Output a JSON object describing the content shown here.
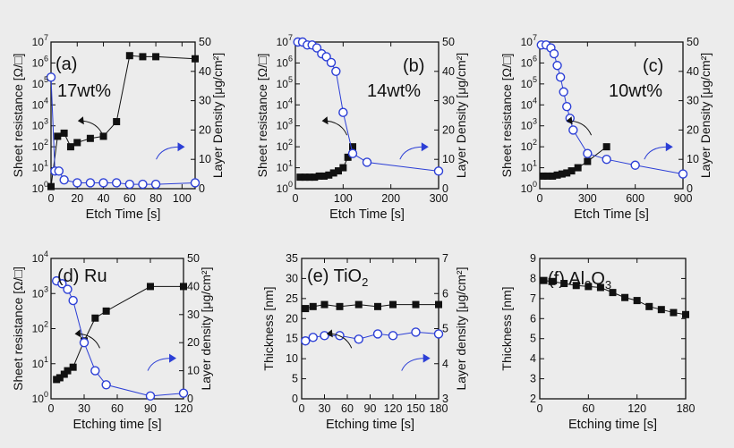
{
  "figure": {
    "background": "#ececec",
    "black": "#111111",
    "blue": "#2c3fd6",
    "white": "#ffffff"
  },
  "chart_data": [
    {
      "id": "a",
      "type": "line",
      "panel_label": "(a)",
      "annotation": "17wt%",
      "xlabel": "Etch Time [s]",
      "ylabel_left": "Sheet resistance [Ω/□]",
      "ylabel_right": "Layer Density [μg/cm²]",
      "xlim": [
        0,
        110
      ],
      "xticks": [
        0,
        20,
        40,
        60,
        80,
        100
      ],
      "y_left": {
        "scale": "log",
        "lim": [
          0,
          7
        ],
        "ticks": [
          0,
          1,
          2,
          3,
          4,
          5,
          6,
          7
        ],
        "tick_labels": [
          "10^0",
          "10^1",
          "10^2",
          "10^3",
          "10^4",
          "10^5",
          "10^6",
          "10^7"
        ]
      },
      "y_right": {
        "lim": [
          0,
          50
        ],
        "ticks": [
          0,
          10,
          20,
          30,
          40,
          50
        ]
      },
      "series": [
        {
          "name": "Sheet resistance",
          "axis": "left",
          "marker": "square",
          "color": "#111111",
          "x": [
            0,
            5,
            10,
            15,
            20,
            30,
            40,
            50,
            60,
            70,
            80,
            110
          ],
          "y": [
            0.1,
            2.5,
            2.65,
            2.0,
            2.2,
            2.4,
            2.5,
            3.2,
            6.35,
            6.3,
            6.3,
            6.2
          ]
        },
        {
          "name": "Layer density",
          "axis": "right",
          "marker": "circle-open",
          "color": "#2c3fd6",
          "x": [
            0,
            3,
            6,
            10,
            20,
            30,
            40,
            50,
            60,
            70,
            80,
            110
          ],
          "y": [
            38,
            6,
            6,
            3,
            2,
            2,
            2,
            2,
            1.5,
            1.5,
            1.5,
            2
          ]
        }
      ],
      "arrows": [
        {
          "side": "left"
        },
        {
          "side": "right"
        }
      ]
    },
    {
      "id": "b",
      "type": "line",
      "panel_label": "(b)",
      "annotation": "14wt%",
      "xlabel": "Etch Time [s]",
      "ylabel_left": "Sheet resistance [Ω/□]",
      "ylabel_right": "Layer Density [μg/cm²]",
      "xlim": [
        0,
        300
      ],
      "xticks": [
        0,
        100,
        200,
        300
      ],
      "y_left": {
        "scale": "log",
        "lim": [
          0,
          7
        ],
        "ticks": [
          0,
          1,
          2,
          3,
          4,
          5,
          6,
          7
        ],
        "tick_labels": [
          "10^0",
          "10^1",
          "10^2",
          "10^3",
          "10^4",
          "10^5",
          "10^6",
          "10^7"
        ]
      },
      "y_right": {
        "lim": [
          0,
          50
        ],
        "ticks": [
          0,
          10,
          20,
          30,
          40,
          50
        ]
      },
      "series": [
        {
          "name": "Sheet resistance",
          "axis": "left",
          "marker": "square",
          "color": "#111111",
          "x": [
            10,
            20,
            30,
            40,
            50,
            60,
            70,
            80,
            90,
            100,
            110,
            120
          ],
          "y": [
            0.55,
            0.55,
            0.55,
            0.55,
            0.6,
            0.6,
            0.65,
            0.75,
            0.85,
            1.0,
            1.5,
            2.0
          ]
        },
        {
          "name": "Layer density",
          "axis": "right",
          "marker": "circle-open",
          "color": "#2c3fd6",
          "x": [
            5,
            15,
            25,
            35,
            45,
            55,
            65,
            75,
            85,
            100,
            120,
            150,
            300
          ],
          "y": [
            50,
            50,
            49,
            49,
            48,
            46,
            45,
            43,
            40,
            26,
            12,
            9,
            6
          ]
        }
      ],
      "arrows": [
        {
          "side": "left"
        },
        {
          "side": "right"
        }
      ]
    },
    {
      "id": "c",
      "type": "line",
      "panel_label": "(c)",
      "annotation": "10wt%",
      "xlabel": "Etch Time [s]",
      "ylabel_left": "Sheet resistance [Ω/□]",
      "ylabel_right": "Layer Density [μg/cm²]",
      "xlim": [
        0,
        900
      ],
      "xticks": [
        0,
        300,
        600,
        900
      ],
      "y_left": {
        "scale": "log",
        "lim": [
          0,
          7
        ],
        "ticks": [
          0,
          1,
          2,
          3,
          4,
          5,
          6,
          7
        ],
        "tick_labels": [
          "10^0",
          "10^1",
          "10^2",
          "10^3",
          "10^4",
          "10^5",
          "10^6",
          "10^7"
        ]
      },
      "y_right": {
        "lim": [
          0,
          50
        ],
        "ticks": [
          0,
          10,
          20,
          30,
          40,
          50
        ]
      },
      "series": [
        {
          "name": "Sheet resistance",
          "axis": "left",
          "marker": "square",
          "color": "#111111",
          "x": [
            20,
            50,
            80,
            110,
            140,
            170,
            200,
            240,
            300,
            420
          ],
          "y": [
            0.6,
            0.6,
            0.6,
            0.65,
            0.7,
            0.75,
            0.85,
            1.0,
            1.3,
            2.0
          ]
        },
        {
          "name": "Layer density",
          "axis": "right",
          "marker": "circle-open",
          "color": "#2c3fd6",
          "x": [
            10,
            40,
            70,
            90,
            110,
            130,
            150,
            170,
            190,
            210,
            300,
            420,
            600,
            900
          ],
          "y": [
            49,
            49,
            48,
            46,
            42,
            38,
            33,
            28,
            24,
            20,
            12,
            10,
            8,
            5
          ]
        }
      ],
      "arrows": [
        {
          "side": "left"
        },
        {
          "side": "right"
        }
      ]
    },
    {
      "id": "d",
      "type": "line",
      "panel_label": "(d) Ru",
      "xlabel": "Etching time [s]",
      "ylabel_left": "Sheet resistance [Ω/□]",
      "ylabel_right": "Layer density [μg/cm²]",
      "xlim": [
        0,
        120
      ],
      "xticks": [
        0,
        30,
        60,
        90,
        120
      ],
      "y_left": {
        "scale": "log",
        "lim": [
          0,
          4
        ],
        "ticks": [
          0,
          1,
          2,
          3,
          4
        ],
        "tick_labels": [
          "10^0",
          "10^1",
          "10^2",
          "10^3",
          "10^4"
        ]
      },
      "y_right": {
        "lim": [
          0,
          50
        ],
        "ticks": [
          0,
          10,
          20,
          30,
          40,
          50
        ]
      },
      "series": [
        {
          "name": "Sheet resistance",
          "axis": "left",
          "marker": "square",
          "color": "#111111",
          "x": [
            5,
            8,
            12,
            15,
            20,
            30,
            40,
            50,
            90,
            120
          ],
          "y": [
            0.55,
            0.6,
            0.7,
            0.8,
            0.9,
            1.65,
            2.3,
            2.5,
            3.2,
            3.2
          ]
        },
        {
          "name": "Layer density",
          "axis": "right",
          "marker": "circle-open",
          "color": "#2c3fd6",
          "x": [
            5,
            10,
            15,
            20,
            30,
            40,
            50,
            90,
            120
          ],
          "y": [
            42,
            41,
            39,
            35,
            20,
            10,
            5,
            1,
            2
          ]
        }
      ],
      "arrows": [
        {
          "side": "left"
        },
        {
          "side": "right"
        }
      ]
    },
    {
      "id": "e",
      "type": "line",
      "panel_label": "(e) TiO",
      "panel_label_sub": "2",
      "xlabel": "Etching time [s]",
      "ylabel_left": "Thickness [nm]",
      "ylabel_right": "Layer density [μg/cm²]",
      "xlim": [
        0,
        180
      ],
      "xticks": [
        0,
        30,
        60,
        90,
        120,
        150,
        180
      ],
      "y_left": {
        "scale": "linear",
        "lim": [
          0,
          35
        ],
        "ticks": [
          0,
          5,
          10,
          15,
          20,
          25,
          30,
          35
        ]
      },
      "y_right": {
        "lim": [
          3,
          7
        ],
        "ticks": [
          3,
          4,
          5,
          6,
          7
        ]
      },
      "series": [
        {
          "name": "Thickness",
          "axis": "left",
          "marker": "square",
          "color": "#111111",
          "x": [
            5,
            15,
            30,
            50,
            75,
            100,
            120,
            150,
            180
          ],
          "y": [
            22.5,
            23,
            23.5,
            23,
            23.5,
            23,
            23.5,
            23.5,
            23.5
          ]
        },
        {
          "name": "Layer density",
          "axis": "right",
          "marker": "circle-open",
          "color": "#2c3fd6",
          "x": [
            5,
            15,
            30,
            50,
            75,
            100,
            120,
            150,
            180
          ],
          "y": [
            4.65,
            4.75,
            4.8,
            4.8,
            4.7,
            4.85,
            4.8,
            4.9,
            4.85
          ]
        }
      ],
      "arrows": [
        {
          "side": "left"
        },
        {
          "side": "right"
        }
      ]
    },
    {
      "id": "f",
      "type": "line",
      "panel_label": "(f) Al",
      "panel_label_parts": [
        "2",
        "O",
        "3"
      ],
      "xlabel": "Etching time [s]",
      "ylabel_left": "Thickness [nm]",
      "xlim": [
        0,
        180
      ],
      "xticks": [
        0,
        60,
        120,
        180
      ],
      "y_left": {
        "scale": "linear",
        "lim": [
          2,
          9
        ],
        "ticks": [
          2,
          3,
          4,
          5,
          6,
          7,
          8,
          9
        ]
      },
      "series": [
        {
          "name": "Thickness",
          "axis": "left",
          "marker": "square",
          "color": "#111111",
          "x": [
            5,
            15,
            30,
            45,
            60,
            75,
            90,
            105,
            120,
            135,
            150,
            165,
            180
          ],
          "y": [
            7.9,
            7.85,
            7.75,
            7.65,
            7.6,
            7.55,
            7.3,
            7.05,
            6.9,
            6.6,
            6.45,
            6.3,
            6.2
          ]
        }
      ]
    }
  ]
}
